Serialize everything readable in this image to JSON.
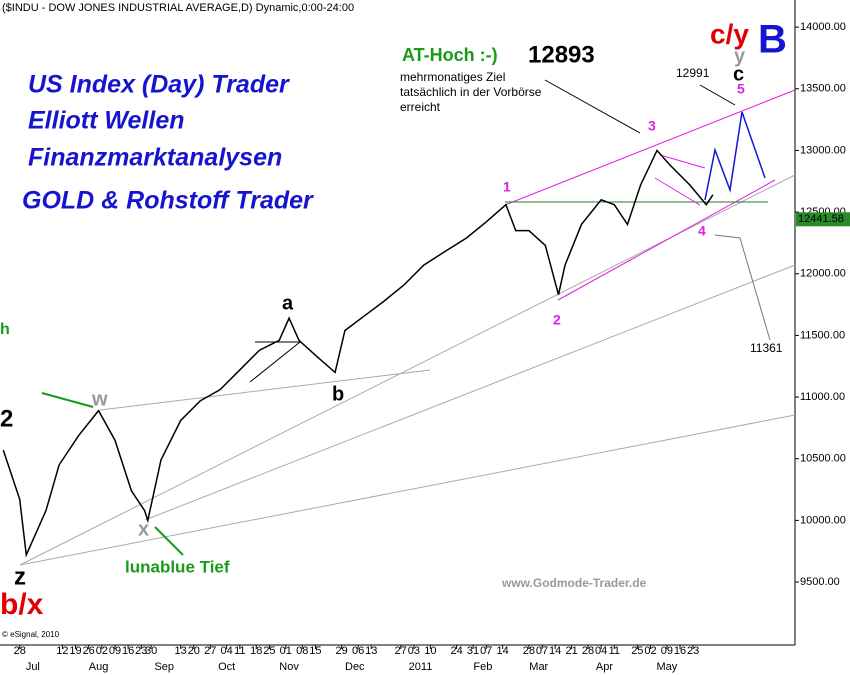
{
  "chart_data": {
    "type": "line",
    "title": "($INDU - DOW JONES INDUSTRIAL AVERAGE,D) Dynamic,0:00-24:00",
    "x": [
      -5,
      0,
      2,
      8,
      12,
      18,
      24,
      29,
      34,
      38,
      39,
      43,
      49,
      55,
      61,
      67,
      73,
      79,
      82,
      85,
      90,
      96,
      99,
      105,
      111,
      117,
      123,
      130,
      136,
      142,
      148,
      151,
      155,
      160,
      164,
      166,
      171,
      177,
      181,
      185,
      189,
      194,
      198,
      204,
      209,
      211
    ],
    "series": [
      {
        "name": "$INDU",
        "color": "#000000",
        "values": [
          10570,
          10170,
          9720,
          10080,
          10450,
          10690,
          10890,
          10650,
          10240,
          10080,
          10000,
          10490,
          10810,
          10970,
          11060,
          11220,
          11380,
          11460,
          11640,
          11460,
          11340,
          11200,
          11540,
          11660,
          11780,
          11910,
          12070,
          12190,
          12290,
          12420,
          12560,
          12350,
          12350,
          12230,
          11830,
          12070,
          12400,
          12600,
          12560,
          12400,
          12720,
          13000,
          12880,
          12720,
          12560,
          12640
        ]
      }
    ],
    "xlim": [
      -6,
      236
    ],
    "ylim": [
      9030,
      14220
    ],
    "yticks": [
      {
        "value": 9500,
        "label": "9500.00"
      },
      {
        "value": 10000,
        "label": "10000.00"
      },
      {
        "value": 10500,
        "label": "10500.00"
      },
      {
        "value": 11000,
        "label": "11000.00"
      },
      {
        "value": 11500,
        "label": "11500.00"
      },
      {
        "value": 12000,
        "label": "12000.00"
      },
      {
        "value": 12500,
        "label": "12500.00"
      },
      {
        "value": 13000,
        "label": "13000.00"
      },
      {
        "value": 13500,
        "label": "13500.00"
      },
      {
        "value": 14000,
        "label": "14000.00"
      }
    ],
    "xticks": [
      {
        "value": 0,
        "label": "28"
      },
      {
        "value": 13,
        "label": "12"
      },
      {
        "value": 17,
        "label": "19"
      },
      {
        "value": 21,
        "label": "26"
      },
      {
        "value": 25,
        "label": "02"
      },
      {
        "value": 29,
        "label": "09"
      },
      {
        "value": 33,
        "label": "16"
      },
      {
        "value": 37,
        "label": "23"
      },
      {
        "value": 40,
        "label": "30"
      },
      {
        "value": 49,
        "label": "13"
      },
      {
        "value": 53,
        "label": "20"
      },
      {
        "value": 58,
        "label": "27"
      },
      {
        "value": 63,
        "label": "04"
      },
      {
        "value": 67,
        "label": "11"
      },
      {
        "value": 72,
        "label": "18"
      },
      {
        "value": 76,
        "label": "25"
      },
      {
        "value": 81,
        "label": "01"
      },
      {
        "value": 86,
        "label": "08"
      },
      {
        "value": 90,
        "label": "15"
      },
      {
        "value": 98,
        "label": "29"
      },
      {
        "value": 103,
        "label": "06"
      },
      {
        "value": 107,
        "label": "13"
      },
      {
        "value": 116,
        "label": "27"
      },
      {
        "value": 120,
        "label": "03"
      },
      {
        "value": 125,
        "label": "10"
      },
      {
        "value": 133,
        "label": "24"
      },
      {
        "value": 138,
        "label": "31"
      },
      {
        "value": 142,
        "label": "07"
      },
      {
        "value": 147,
        "label": "14"
      },
      {
        "value": 155,
        "label": "28"
      },
      {
        "value": 159,
        "label": "07"
      },
      {
        "value": 163,
        "label": "14"
      },
      {
        "value": 168,
        "label": "21"
      },
      {
        "value": 173,
        "label": "28"
      },
      {
        "value": 177,
        "label": "04"
      },
      {
        "value": 181,
        "label": "11"
      },
      {
        "value": 188,
        "label": "25"
      },
      {
        "value": 192,
        "label": "02"
      },
      {
        "value": 197,
        "label": "09"
      },
      {
        "value": 201,
        "label": "16"
      },
      {
        "value": 205,
        "label": "23"
      }
    ],
    "month_ticks": [
      {
        "value": 4,
        "label": "Jul"
      },
      {
        "value": 24,
        "label": "Aug"
      },
      {
        "value": 44,
        "label": "Sep"
      },
      {
        "value": 63,
        "label": "Oct"
      },
      {
        "value": 82,
        "label": "Nov"
      },
      {
        "value": 102,
        "label": "Dec"
      },
      {
        "value": 122,
        "label": "2011"
      },
      {
        "value": 141,
        "label": "Feb"
      },
      {
        "value": 158,
        "label": "Mar"
      },
      {
        "value": 178,
        "label": "Apr"
      },
      {
        "value": 197,
        "label": "May"
      }
    ],
    "last_price": {
      "value": 12441.58,
      "label": "12441.58"
    },
    "annotations": [
      "US Index (Day) Trader",
      "Elliott Wellen",
      "Finanzmarktanalysen",
      "GOLD & Rohstoff Trader",
      "AT-Hoch :-)",
      "12893",
      "mehrmonatiges Ziel",
      "tatsächlich in der Vorbörse",
      "erreicht",
      "12991",
      "c/y",
      "B",
      "lunablue Tief",
      "www.Godmode-Trader.de",
      "© eSignal, 2010",
      "11361"
    ],
    "waves": [
      "2",
      "z",
      "b/x",
      "w",
      "x",
      "a",
      "b",
      "1",
      "2",
      "3",
      "4",
      "5",
      "c",
      "y",
      "h"
    ]
  }
}
